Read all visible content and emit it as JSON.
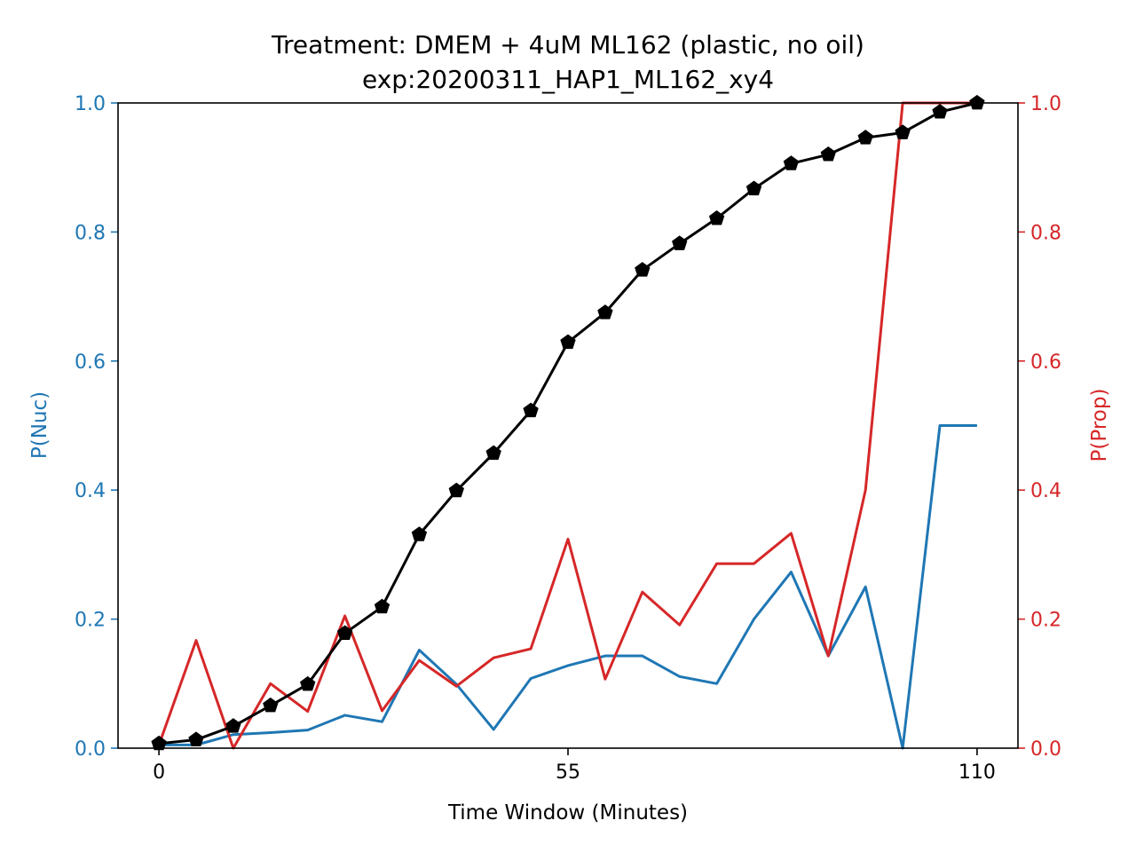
{
  "chart_data": {
    "type": "line",
    "title": "Treatment: DMEM + 4uM ML162 (plastic, no oil)",
    "subtitle": "exp:20200311_HAP1_ML162_xy4",
    "xlabel": "Time Window (Minutes)",
    "ylabel_left": "P(Nuc)",
    "ylabel_right": "P(Prop)",
    "xlim": [
      -5.5,
      115.5
    ],
    "ylim_left": [
      0,
      1
    ],
    "ylim_right": [
      0,
      1
    ],
    "x_ticks": [
      0,
      55,
      110
    ],
    "y_ticks_left": [
      "0.0",
      "0.2",
      "0.4",
      "0.6",
      "0.8",
      "1.0"
    ],
    "y_ticks_right": [
      "0.0",
      "0.2",
      "0.4",
      "0.6",
      "0.8",
      "1.0"
    ],
    "colors": {
      "left": "#1f77b4",
      "right": "#d62728",
      "cumulative": "#000000"
    },
    "x": [
      0,
      5,
      10,
      15,
      20,
      25,
      30,
      35,
      40,
      45,
      50,
      55,
      60,
      65,
      70,
      75,
      80,
      85,
      90,
      95,
      100,
      105,
      110
    ],
    "series": [
      {
        "axis": "left",
        "color": "#1f77b4",
        "marker": "none",
        "values": [
          0.005,
          0.005,
          0.021,
          0.024,
          0.028,
          0.051,
          0.041,
          0.152,
          0.099,
          0.029,
          0.108,
          0.128,
          0.143,
          0.143,
          0.111,
          0.1,
          0.2,
          0.273,
          0.143,
          0.25,
          0.0,
          0.5,
          0.5
        ]
      },
      {
        "axis": "right",
        "color": "#d62728",
        "marker": "none",
        "values": [
          0.005,
          0.167,
          0.0,
          0.1,
          0.057,
          0.205,
          0.058,
          0.136,
          0.096,
          0.14,
          0.154,
          0.324,
          0.107,
          0.242,
          0.191,
          0.286,
          0.286,
          0.333,
          0.143,
          0.4,
          1.0,
          1.0,
          1.0
        ]
      },
      {
        "axis": "left",
        "color": "#000000",
        "marker": "pentagon",
        "values": [
          0.007,
          0.013,
          0.034,
          0.066,
          0.099,
          0.178,
          0.219,
          0.331,
          0.399,
          0.457,
          0.523,
          0.629,
          0.675,
          0.741,
          0.782,
          0.821,
          0.867,
          0.906,
          0.92,
          0.946,
          0.954,
          0.986,
          1.0
        ]
      }
    ]
  }
}
